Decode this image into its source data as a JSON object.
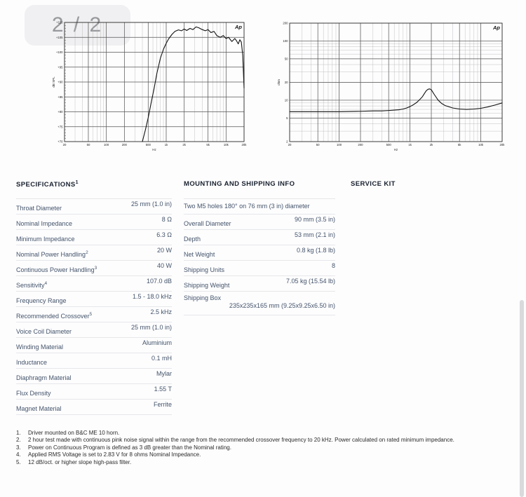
{
  "page_indicator": "2 / 2",
  "chart_data": [
    {
      "type": "line",
      "name": "frequency-response",
      "logo": "Ap",
      "x_scale": "log",
      "y_scale": "linear",
      "xlabel": "Hz",
      "ylabel": "dB SPL",
      "xlim": [
        20,
        20000
      ],
      "ylim": [
        70,
        110
      ],
      "x_tick_values": [
        20,
        50,
        100,
        200,
        500,
        1000,
        2000,
        5000,
        10000,
        20000
      ],
      "x_tick_labels": [
        "20",
        "50",
        "100",
        "200",
        "500",
        "1k",
        "2k",
        "5k",
        "10k",
        "20k"
      ],
      "y_tick_values": [
        110,
        105,
        100,
        95,
        90,
        85,
        80,
        75,
        70
      ],
      "y_tick_labels": [
        "+110",
        "+105",
        "+100",
        "+95",
        "+90",
        "+85",
        "+80",
        "+75",
        "+70"
      ],
      "grid": true,
      "legend": "none",
      "series": [
        {
          "name": "spl-response",
          "x": [
            400,
            450,
            500,
            560,
            630,
            700,
            800,
            900,
            1000,
            1100,
            1250,
            1400,
            1600,
            1800,
            2000,
            2200,
            2500,
            2800,
            3150,
            3500,
            4000,
            4500,
            5000,
            5600,
            6300,
            7000,
            8000,
            9000,
            10000,
            11000,
            12500,
            14000,
            15000,
            16000,
            17000,
            18000,
            19000,
            20000
          ],
          "y": [
            70,
            74,
            78,
            83,
            88,
            93,
            98,
            101,
            103,
            104.5,
            106,
            107,
            107.5,
            107.2,
            107.8,
            107.3,
            108,
            107.6,
            108.5,
            108.2,
            107.6,
            107.2,
            107.6,
            106.6,
            107,
            105.6,
            105,
            105.6,
            104.6,
            105,
            103.6,
            104.6,
            103.8,
            102.8,
            104.2,
            103.4,
            99,
            88
          ]
        }
      ]
    },
    {
      "type": "line",
      "name": "impedance",
      "logo": "Ap",
      "x_scale": "log",
      "y_scale": "log",
      "xlabel": "Hz",
      "ylabel": "ohm",
      "xlim": [
        20,
        20000
      ],
      "ylim": [
        2,
        200
      ],
      "x_tick_values": [
        20,
        50,
        100,
        200,
        500,
        1000,
        2000,
        5000,
        10000,
        20000
      ],
      "x_tick_labels": [
        "20",
        "50",
        "100",
        "200",
        "500",
        "1k",
        "2k",
        "5k",
        "10k",
        "20k"
      ],
      "y_tick_values": [
        200,
        100,
        50,
        20,
        10,
        5,
        2
      ],
      "y_tick_labels": [
        "200",
        "100",
        "50",
        "20",
        "10",
        "5",
        "2"
      ],
      "grid": true,
      "legend": "none",
      "series": [
        {
          "name": "impedance-curve",
          "x": [
            20,
            50,
            100,
            200,
            300,
            400,
            500,
            600,
            700,
            800,
            900,
            1000,
            1100,
            1250,
            1400,
            1500,
            1600,
            1700,
            1800,
            1900,
            2000,
            2200,
            2500,
            2800,
            3150,
            4000,
            5000,
            6300,
            8000,
            10000,
            12500,
            16000,
            20000
          ],
          "y": [
            6.4,
            6.4,
            6.4,
            6.5,
            6.6,
            6.6,
            6.7,
            6.8,
            6.9,
            7.1,
            7.4,
            7.8,
            8.3,
            9.2,
            10.5,
            11.5,
            13.0,
            14.5,
            15.3,
            15.5,
            15.0,
            12.5,
            10.0,
            8.8,
            8.1,
            7.4,
            7.1,
            7.0,
            7.1,
            7.3,
            7.7,
            8.3,
            9.0
          ]
        }
      ]
    }
  ],
  "sections": {
    "specifications": {
      "title": "SPECIFICATIONS",
      "title_sup": "1",
      "rows": [
        {
          "label": "Throat Diameter",
          "value": "25 mm (1.0 in)"
        },
        {
          "label": "Nominal Impedance",
          "value": "8 Ω"
        },
        {
          "label": "Minimum Impedance",
          "value": "6.3 Ω"
        },
        {
          "label": "Nominal Power Handling",
          "sup": "2",
          "value": "20 W"
        },
        {
          "label": "Continuous Power Handling",
          "sup": "3",
          "value": "40 W"
        },
        {
          "label": "Sensitivity",
          "sup": "4",
          "value": "107.0 dB"
        },
        {
          "label": "Frequency Range",
          "value": "1.5 - 18.0 kHz"
        },
        {
          "label": "Recommended Crossover",
          "sup": "5",
          "value": "2.5 kHz"
        },
        {
          "label": "Voice Coil Diameter",
          "value": "25 mm (1.0 in)"
        },
        {
          "label": "Winding Material",
          "value": "Aluminium"
        },
        {
          "label": "Inductance",
          "value": "0.1 mH"
        },
        {
          "label": "Diaphragm Material",
          "value": "Mylar"
        },
        {
          "label": "Flux Density",
          "value": "1.55 T"
        },
        {
          "label": "Magnet Material",
          "value": "Ferrite"
        }
      ]
    },
    "mounting": {
      "title": "MOUNTING AND SHIPPING INFO",
      "note": "Two M5 holes 180° on 76 mm (3 in) diameter",
      "rows": [
        {
          "label": "Overall Diameter",
          "value": "90 mm (3.5 in)"
        },
        {
          "label": "Depth",
          "value": "53 mm (2.1 in)"
        },
        {
          "label": "Net Weight",
          "value": "0.8 kg (1.8 lb)"
        },
        {
          "label": "Shipping Units",
          "value": "8"
        },
        {
          "label": "Shipping Weight",
          "value": "7.05 kg (15.54 lb)"
        },
        {
          "label": "Shipping Box",
          "value": "235x235x165 mm (9.25x9.25x6.50 in)",
          "twoline": true
        }
      ]
    },
    "service_kit": {
      "title": "SERVICE KIT"
    }
  },
  "footnotes": [
    "Driver mounted on B&C ME 10 horn.",
    "2 hour test made with continuous pink noise signal within the range from the recommended crossover frequency to 20 kHz. Power calculated on rated minimum impedance.",
    "Power on Continuous Program is defined as 3 dB greater than the Nominal rating.",
    "Applied RMS Voltage is set to 2.83 V for 8 ohms Nominal Impedance.",
    "12 dB/oct. or higher slope high-pass filter."
  ]
}
